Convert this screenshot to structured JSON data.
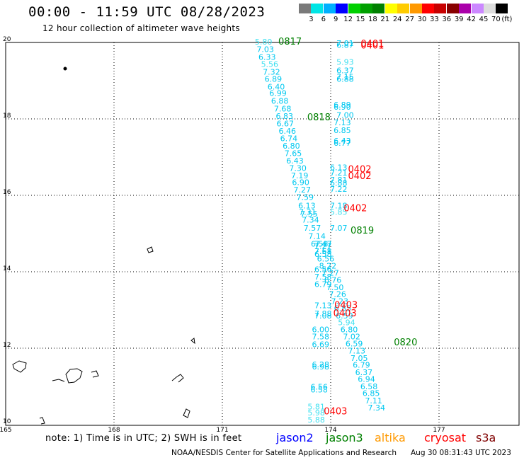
{
  "header": {
    "title": "00:00 - 11:59 UTC 08/28/2023",
    "subtitle": "12 hour collection of altimeter wave heights"
  },
  "colorbar": {
    "unit": "(ft)",
    "colors": [
      "#7a7a7a",
      "#00e5e5",
      "#00b0ff",
      "#0000ff",
      "#00d000",
      "#00a000",
      "#008000",
      "#ffff00",
      "#ffcc00",
      "#ff9900",
      "#ff0000",
      "#c80000",
      "#880000",
      "#aa00aa",
      "#cc88ff",
      "#dddddd",
      "#000000"
    ],
    "labels": [
      "3",
      "6",
      "9",
      "12",
      "15",
      "18",
      "21",
      "24",
      "27",
      "30",
      "33",
      "36",
      "39",
      "42",
      "45",
      "70"
    ]
  },
  "map": {
    "lat_labels": [
      "20",
      "18",
      "16",
      "14",
      "12",
      "10"
    ],
    "lon_labels": [
      "165",
      "168",
      "171",
      "174",
      "177"
    ],
    "colors": {
      "swh_6_9": "#00c8f0",
      "swh_3_6": "#40e0f0",
      "jason2": "#0000ff",
      "jason3": "#008000",
      "altika": "#ff9900",
      "cryosat": "#ff0000",
      "s3a": "#800000"
    },
    "track_labels": [
      {
        "text": "0817",
        "lon": 172.55,
        "lat": 19.94,
        "color": "#008000"
      },
      {
        "text": "0818",
        "lon": 173.35,
        "lat": 17.96,
        "color": "#008000"
      },
      {
        "text": "0819",
        "lon": 174.55,
        "lat": 15.0,
        "color": "#008000"
      },
      {
        "text": "0820",
        "lon": 175.75,
        "lat": 12.07,
        "color": "#008000"
      },
      {
        "text": "0401",
        "lon": 174.83,
        "lat": 19.89,
        "color": "#ff0000"
      },
      {
        "text": "0401",
        "lon": 174.83,
        "lat": 19.84,
        "color": "#ff0000"
      },
      {
        "text": "0402",
        "lon": 174.48,
        "lat": 16.6,
        "color": "#ff0000"
      },
      {
        "text": "0402",
        "lon": 174.48,
        "lat": 16.43,
        "color": "#ff0000"
      },
      {
        "text": "0402",
        "lon": 174.36,
        "lat": 15.58,
        "color": "#ff0000"
      },
      {
        "text": "0403",
        "lon": 174.1,
        "lat": 13.05,
        "color": "#ff0000"
      },
      {
        "text": "0403",
        "lon": 174.07,
        "lat": 12.83,
        "color": "#ff0000"
      },
      {
        "text": "0403",
        "lon": 173.81,
        "lat": 10.27,
        "color": "#ff0000"
      }
    ],
    "readings": [
      {
        "v": "5.80",
        "lon": 171.9,
        "lat": 19.94,
        "c": "#40e0f0"
      },
      {
        "v": "7.03",
        "lon": 171.95,
        "lat": 19.75,
        "c": "#00c8f0"
      },
      {
        "v": "6.33",
        "lon": 172.0,
        "lat": 19.55,
        "c": "#00c8f0"
      },
      {
        "v": "5.56",
        "lon": 172.07,
        "lat": 19.36,
        "c": "#40e0f0"
      },
      {
        "v": "7.32",
        "lon": 172.12,
        "lat": 19.16,
        "c": "#00c8f0"
      },
      {
        "v": "6.89",
        "lon": 172.17,
        "lat": 18.97,
        "c": "#00c8f0"
      },
      {
        "v": "6.40",
        "lon": 172.25,
        "lat": 18.77,
        "c": "#00c8f0"
      },
      {
        "v": "6.99",
        "lon": 172.3,
        "lat": 18.6,
        "c": "#00c8f0"
      },
      {
        "v": "6.88",
        "lon": 172.35,
        "lat": 18.4,
        "c": "#00c8f0"
      },
      {
        "v": "7.68",
        "lon": 172.43,
        "lat": 18.19,
        "c": "#00c8f0"
      },
      {
        "v": "6.83",
        "lon": 172.48,
        "lat": 18.0,
        "c": "#00c8f0"
      },
      {
        "v": "6.67",
        "lon": 172.5,
        "lat": 17.81,
        "c": "#00c8f0"
      },
      {
        "v": "6.46",
        "lon": 172.56,
        "lat": 17.61,
        "c": "#00c8f0"
      },
      {
        "v": "6.74",
        "lon": 172.6,
        "lat": 17.42,
        "c": "#00c8f0"
      },
      {
        "v": "6.80",
        "lon": 172.67,
        "lat": 17.22,
        "c": "#00c8f0"
      },
      {
        "v": "7.65",
        "lon": 172.72,
        "lat": 17.03,
        "c": "#00c8f0"
      },
      {
        "v": "6.43",
        "lon": 172.77,
        "lat": 16.83,
        "c": "#00c8f0"
      },
      {
        "v": "7.30",
        "lon": 172.85,
        "lat": 16.64,
        "c": "#00c8f0"
      },
      {
        "v": "7.19",
        "lon": 172.9,
        "lat": 16.44,
        "c": "#00c8f0"
      },
      {
        "v": "6.90",
        "lon": 172.93,
        "lat": 16.27,
        "c": "#00c8f0"
      },
      {
        "v": "7.27",
        "lon": 172.97,
        "lat": 16.07,
        "c": "#00c8f0"
      },
      {
        "v": "7.59",
        "lon": 173.05,
        "lat": 15.88,
        "c": "#00c8f0"
      },
      {
        "v": "6.13",
        "lon": 173.1,
        "lat": 15.66,
        "c": "#00c8f0"
      },
      {
        "v": "7.31",
        "lon": 173.12,
        "lat": 15.49,
        "c": "#00c8f0"
      },
      {
        "v": "7.55",
        "lon": 173.16,
        "lat": 15.44,
        "c": "#00c8f0"
      },
      {
        "v": "7.34",
        "lon": 173.2,
        "lat": 15.29,
        "c": "#00c8f0"
      },
      {
        "v": "7.57",
        "lon": 173.25,
        "lat": 15.07,
        "c": "#00c8f0"
      },
      {
        "v": "7.14",
        "lon": 173.38,
        "lat": 14.86,
        "c": "#00c8f0"
      },
      {
        "v": "6.58",
        "lon": 173.45,
        "lat": 14.66,
        "c": "#00c8f0"
      },
      {
        "v": "7.61",
        "lon": 173.55,
        "lat": 14.46,
        "c": "#00c8f0"
      },
      {
        "v": "6.56",
        "lon": 173.62,
        "lat": 14.27,
        "c": "#00c8f0"
      },
      {
        "v": "8.22",
        "lon": 173.68,
        "lat": 14.08,
        "c": "#00c8f0"
      },
      {
        "v": "7.27",
        "lon": 173.75,
        "lat": 13.9,
        "c": "#00c8f0"
      },
      {
        "v": "6.76",
        "lon": 173.82,
        "lat": 13.71,
        "c": "#00c8f0"
      },
      {
        "v": "7.50",
        "lon": 173.88,
        "lat": 13.52,
        "c": "#00c8f0"
      },
      {
        "v": "7.26",
        "lon": 173.95,
        "lat": 13.34,
        "c": "#00c8f0"
      },
      {
        "v": "7.23",
        "lon": 174.01,
        "lat": 13.16,
        "c": "#00c8f0"
      },
      {
        "v": "6.85",
        "lon": 174.09,
        "lat": 12.97,
        "c": "#00c8f0"
      },
      {
        "v": "6.59",
        "lon": 174.14,
        "lat": 12.78,
        "c": "#00c8f0"
      },
      {
        "v": "5.94",
        "lon": 174.2,
        "lat": 12.6,
        "c": "#40e0f0"
      },
      {
        "v": "6.80",
        "lon": 174.27,
        "lat": 12.42,
        "c": "#00c8f0"
      },
      {
        "v": "7.02",
        "lon": 174.34,
        "lat": 12.23,
        "c": "#00c8f0"
      },
      {
        "v": "6.59",
        "lon": 174.41,
        "lat": 12.05,
        "c": "#00c8f0"
      },
      {
        "v": "7.13",
        "lon": 174.48,
        "lat": 11.86,
        "c": "#00c8f0"
      },
      {
        "v": "7.05",
        "lon": 174.55,
        "lat": 11.67,
        "c": "#00c8f0"
      },
      {
        "v": "6.79",
        "lon": 174.61,
        "lat": 11.49,
        "c": "#00c8f0"
      },
      {
        "v": "6.37",
        "lon": 174.68,
        "lat": 11.3,
        "c": "#00c8f0"
      },
      {
        "v": "6.94",
        "lon": 174.75,
        "lat": 11.12,
        "c": "#00c8f0"
      },
      {
        "v": "6.58",
        "lon": 174.82,
        "lat": 10.93,
        "c": "#00c8f0"
      },
      {
        "v": "6.85",
        "lon": 174.88,
        "lat": 10.75,
        "c": "#00c8f0"
      },
      {
        "v": "7.11",
        "lon": 174.95,
        "lat": 10.56,
        "c": "#00c8f0"
      },
      {
        "v": "7.34",
        "lon": 175.03,
        "lat": 10.37,
        "c": "#00c8f0"
      },
      {
        "v": "7.01",
        "lon": 174.16,
        "lat": 19.91,
        "c": "#00c8f0"
      },
      {
        "v": "6.87",
        "lon": 174.16,
        "lat": 19.86,
        "c": "#00c8f0"
      },
      {
        "v": "5.93",
        "lon": 174.16,
        "lat": 19.42,
        "c": "#40e0f0"
      },
      {
        "v": "6.37",
        "lon": 174.16,
        "lat": 19.19,
        "c": "#00c8f0"
      },
      {
        "v": "7.15",
        "lon": 174.16,
        "lat": 19.03,
        "c": "#00c8f0"
      },
      {
        "v": "6.88",
        "lon": 174.16,
        "lat": 18.97,
        "c": "#00c8f0"
      },
      {
        "v": "6.89",
        "lon": 174.08,
        "lat": 18.3,
        "c": "#00c8f0"
      },
      {
        "v": "6.90",
        "lon": 174.08,
        "lat": 18.24,
        "c": "#00c8f0"
      },
      {
        "v": "7.00",
        "lon": 174.16,
        "lat": 18.03,
        "c": "#00c8f0"
      },
      {
        "v": "7.13",
        "lon": 174.08,
        "lat": 17.83,
        "c": "#00c8f0"
      },
      {
        "v": "6.85",
        "lon": 174.08,
        "lat": 17.63,
        "c": "#00c8f0"
      },
      {
        "v": "6.43",
        "lon": 174.08,
        "lat": 17.35,
        "c": "#00c8f0"
      },
      {
        "v": "6.77",
        "lon": 174.08,
        "lat": 17.3,
        "c": "#00c8f0"
      },
      {
        "v": "6.13",
        "lon": 173.98,
        "lat": 16.66,
        "c": "#00c8f0"
      },
      {
        "v": "7.21",
        "lon": 173.98,
        "lat": 16.52,
        "c": "#00c8f0"
      },
      {
        "v": "7.81",
        "lon": 173.98,
        "lat": 16.33,
        "c": "#00c8f0"
      },
      {
        "v": "6.88",
        "lon": 173.98,
        "lat": 16.25,
        "c": "#00c8f0"
      },
      {
        "v": "7.22",
        "lon": 173.98,
        "lat": 16.09,
        "c": "#00c8f0"
      },
      {
        "v": "7.18",
        "lon": 173.98,
        "lat": 15.66,
        "c": "#00c8f0"
      },
      {
        "v": "5.85",
        "lon": 173.98,
        "lat": 15.49,
        "c": "#40e0f0"
      },
      {
        "v": "7.07",
        "lon": 173.98,
        "lat": 15.07,
        "c": "#00c8f0"
      },
      {
        "v": "7.47",
        "lon": 173.55,
        "lat": 14.66,
        "c": "#00c8f0"
      },
      {
        "v": "7.27",
        "lon": 173.55,
        "lat": 14.6,
        "c": "#00c8f0"
      },
      {
        "v": "7.58",
        "lon": 173.55,
        "lat": 14.46,
        "c": "#00c8f0"
      },
      {
        "v": "6.58",
        "lon": 173.55,
        "lat": 14.39,
        "c": "#00c8f0"
      },
      {
        "v": "6.56",
        "lon": 173.55,
        "lat": 13.99,
        "c": "#00c8f0"
      },
      {
        "v": "7.58",
        "lon": 173.55,
        "lat": 13.8,
        "c": "#00c8f0"
      },
      {
        "v": "6.79",
        "lon": 173.55,
        "lat": 13.6,
        "c": "#00c8f0"
      },
      {
        "v": "7.13",
        "lon": 173.55,
        "lat": 13.05,
        "c": "#00c8f0"
      },
      {
        "v": "7.88",
        "lon": 173.55,
        "lat": 12.83,
        "c": "#00c8f0"
      },
      {
        "v": "7.08",
        "lon": 173.55,
        "lat": 12.78,
        "c": "#00c8f0"
      },
      {
        "v": "6.00",
        "lon": 173.48,
        "lat": 12.42,
        "c": "#00c8f0"
      },
      {
        "v": "7.58",
        "lon": 173.48,
        "lat": 12.23,
        "c": "#00c8f0"
      },
      {
        "v": "6.69",
        "lon": 173.48,
        "lat": 12.03,
        "c": "#00c8f0"
      },
      {
        "v": "6.28",
        "lon": 173.48,
        "lat": 11.5,
        "c": "#00c8f0"
      },
      {
        "v": "6.98",
        "lon": 173.48,
        "lat": 11.44,
        "c": "#00c8f0"
      },
      {
        "v": "6.56",
        "lon": 173.44,
        "lat": 10.92,
        "c": "#00c8f0"
      },
      {
        "v": "6.58",
        "lon": 173.44,
        "lat": 10.84,
        "c": "#00c8f0"
      },
      {
        "v": "5.81",
        "lon": 173.36,
        "lat": 10.4,
        "c": "#40e0f0"
      },
      {
        "v": "5.98",
        "lon": 173.36,
        "lat": 10.24,
        "c": "#40e0f0"
      },
      {
        "v": "5.88",
        "lon": 173.36,
        "lat": 10.06,
        "c": "#40e0f0"
      }
    ]
  },
  "footer": {
    "note": "note: 1) Time is in UTC; 2) SWH is in feet",
    "satellites": [
      {
        "name": "jason2",
        "color": "#0000ff"
      },
      {
        "name": "jason3",
        "color": "#008000"
      },
      {
        "name": "altika",
        "color": "#ff9900"
      },
      {
        "name": "cryosat",
        "color": "#ff0000"
      },
      {
        "name": "s3a",
        "color": "#800000"
      }
    ],
    "credit": "NOAA/NESDIS Center for Satellite Applications and Research",
    "timestamp": "Aug 30 08:31:43 UTC 2023"
  }
}
